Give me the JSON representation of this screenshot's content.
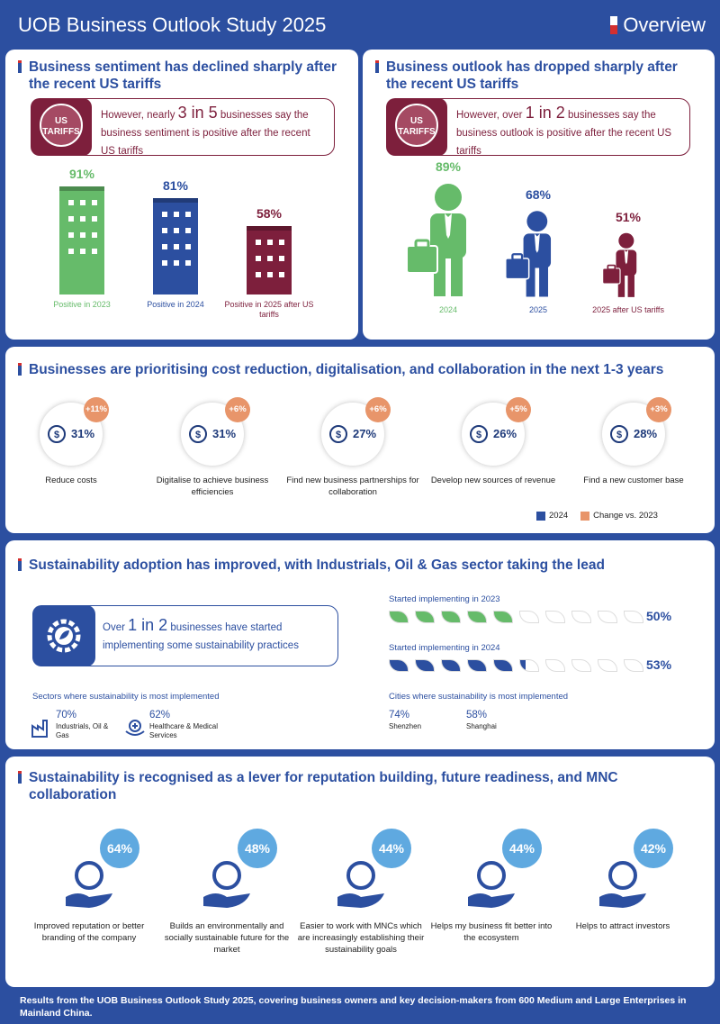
{
  "header": {
    "title": "UOB Business Outlook Study 2025",
    "right": "Overview"
  },
  "sentiment": {
    "title": "Business sentiment has declined sharply after the recent US tariffs",
    "badge": "US TARIFFS",
    "callout_pre": "However, nearly ",
    "callout_big": "3 in 5",
    "callout_post": " businesses say the business sentiment is positive after the recent US tariffs",
    "bars": [
      {
        "pct": "91%",
        "value": 91,
        "label": "Positive in 2023",
        "color": "#66bb6a"
      },
      {
        "pct": "81%",
        "value": 81,
        "label": "Positive in 2024",
        "color": "#2c4fa0"
      },
      {
        "pct": "58%",
        "value": 58,
        "label": "Positive in 2025 after US tariffs",
        "color": "#7d1f3c"
      }
    ]
  },
  "outlook": {
    "title": "Business outlook has dropped sharply after the recent US tariffs",
    "badge": "US TARIFFS",
    "callout_pre": "However, over ",
    "callout_big": "1 in 2",
    "callout_post": " businesses say the business outlook is positive after the recent US tariffs",
    "figures": [
      {
        "pct": "89%",
        "value": 89,
        "label": "2024",
        "color": "#66bb6a"
      },
      {
        "pct": "68%",
        "value": 68,
        "label": "2025",
        "color": "#2c4fa0"
      },
      {
        "pct": "51%",
        "value": 51,
        "label": "2025 after US tariffs",
        "color": "#7d1f3c"
      }
    ]
  },
  "priorities": {
    "title": "Businesses are prioritising cost reduction, digitalisation, and collaboration in the next 1-3 years",
    "items": [
      {
        "pct": "31%",
        "change": "+11%",
        "label": "Reduce costs",
        "icon": "dollar-down-icon"
      },
      {
        "pct": "31%",
        "change": "+6%",
        "label": "Digitalise to achieve business efficiencies",
        "icon": "smartphone-icon"
      },
      {
        "pct": "27%",
        "change": "+6%",
        "label": "Find new business partnerships for collaboration",
        "icon": "handshake-icon"
      },
      {
        "pct": "26%",
        "change": "+5%",
        "label": "Develop new sources of revenue",
        "icon": "dollar-plant-icon"
      },
      {
        "pct": "28%",
        "change": "+3%",
        "label": "Find a new customer base",
        "icon": "people-icon"
      }
    ],
    "legend": [
      {
        "label": "2024",
        "color": "#2c4fa0"
      },
      {
        "label": "Change vs. 2023",
        "color": "#e8956a"
      }
    ]
  },
  "adoption": {
    "title": "Sustainability adoption has improved, with Industrials, Oil & Gas sector taking the lead",
    "callout_pre": "Over ",
    "callout_big": "1 in 2",
    "callout_post": " businesses have started implementing some sustainability practices",
    "rows": [
      {
        "label": "Started implementing in 2023",
        "pct": "50%",
        "value": 50,
        "color": "#66bb6a"
      },
      {
        "label": "Started implementing in 2024",
        "pct": "53%",
        "value": 53,
        "color": "#2c4fa0"
      }
    ],
    "sectors_title": "Sectors where sustainability is most implemented",
    "sectors": [
      {
        "pct": "70%",
        "label": "Industrials, Oil & Gas",
        "icon": "factory-icon"
      },
      {
        "pct": "62%",
        "label": "Healthcare & Medical Services",
        "icon": "medical-icon"
      }
    ],
    "cities_title": "Cities where sustainability is most implemented",
    "cities": [
      {
        "pct": "74%",
        "label": "Shenzhen"
      },
      {
        "pct": "58%",
        "label": "Shanghai"
      }
    ]
  },
  "lever": {
    "title": "Sustainability is recognised as a lever for reputation building, future readiness, and MNC collaboration",
    "items": [
      {
        "pct": "64%",
        "label": "Improved reputation or better branding of the company",
        "icon": "award-hand-icon"
      },
      {
        "pct": "48%",
        "label": "Builds an environmentally and socially sustainable future for the market",
        "icon": "star-hands-icon"
      },
      {
        "pct": "44%",
        "label": "Easier to work with MNCs which are increasingly establishing their sustainability goals",
        "icon": "building-icon"
      },
      {
        "pct": "44%",
        "label": "Helps my business fit better into the ecosystem",
        "icon": "globe-hand-icon"
      },
      {
        "pct": "42%",
        "label": "Helps to attract investors",
        "icon": "investors-icon"
      }
    ]
  },
  "footer": "Results from the UOB Business Outlook Study 2025, covering business owners and key decision-makers from 600 Medium and Large Enterprises in Mainland China."
}
